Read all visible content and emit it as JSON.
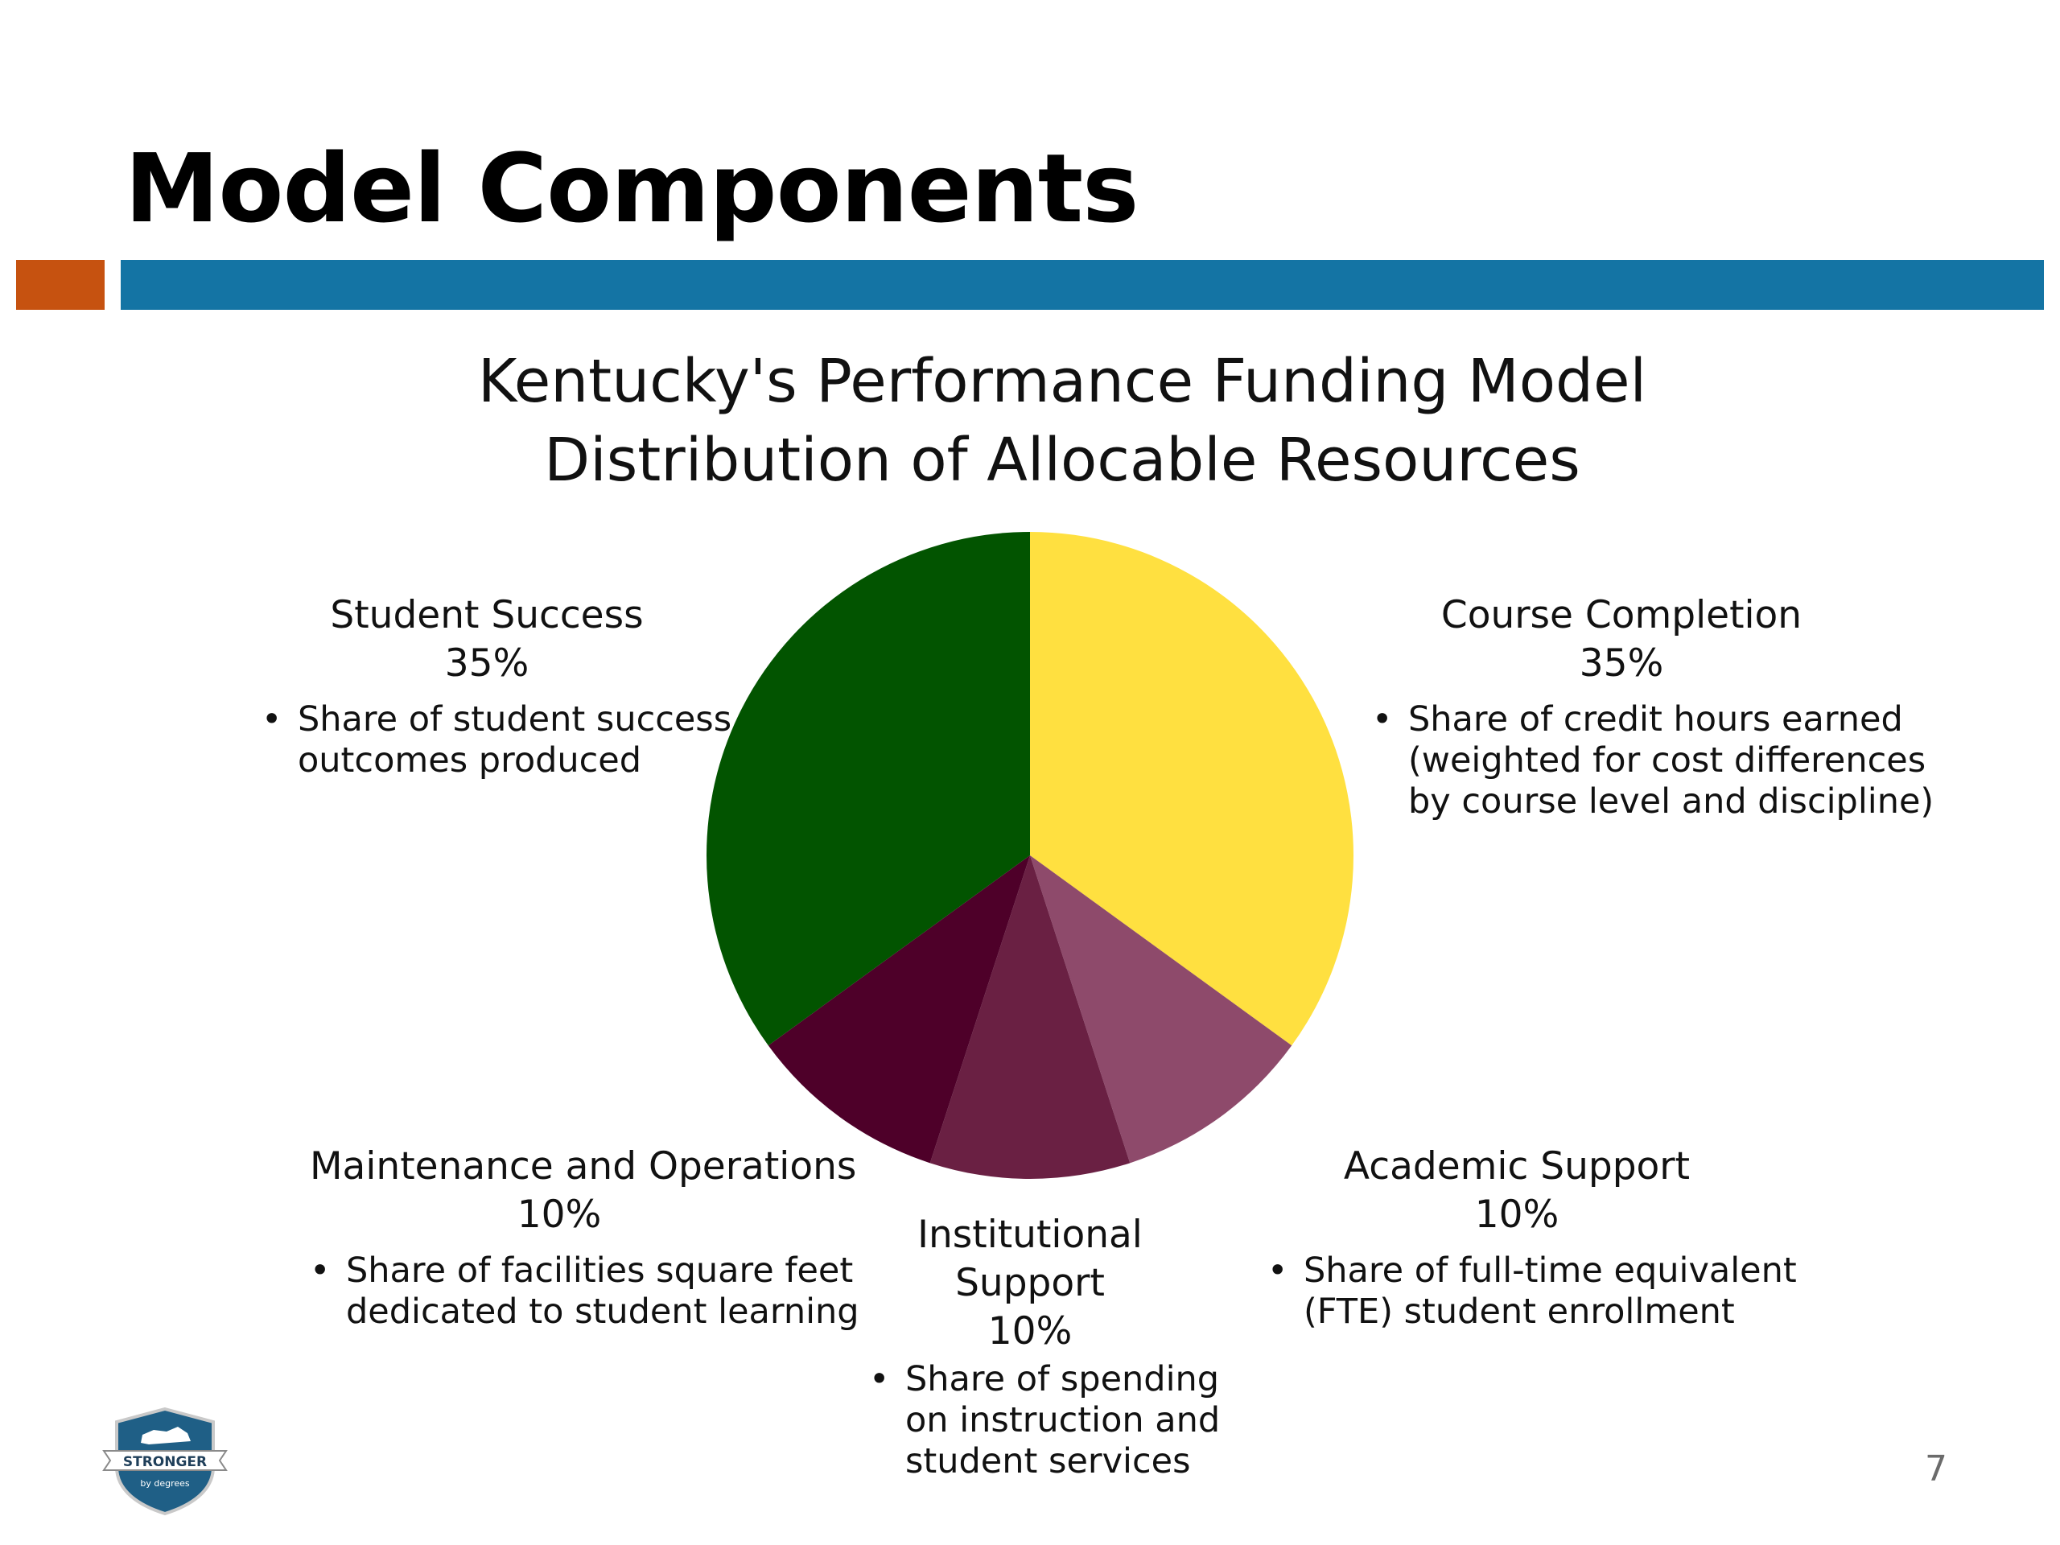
{
  "slide": {
    "title": "Model Components",
    "page_number": "7",
    "accent_colors": {
      "orange": "#C65210",
      "blue": "#1474A4"
    }
  },
  "logo": {
    "text": "STRONGER",
    "subtext": "by degrees",
    "icon": "kentucky-shield-icon",
    "colors": {
      "shield": "#1F5F86",
      "banner": "#FFFFFF"
    }
  },
  "chart_data": {
    "type": "pie",
    "title_lines": [
      "Kentucky's Performance Funding Model",
      "Distribution of Allocable Resources"
    ],
    "slices": [
      {
        "name": "Course Completion",
        "percent_label": "35%",
        "value": 35,
        "color": "#FFE040",
        "description": [
          "Share of credit hours earned",
          "(weighted for cost differences",
          "by course level and discipline)"
        ]
      },
      {
        "name": "Academic Support",
        "percent_label": "10%",
        "value": 10,
        "color": "#8E4A6B",
        "description": [
          "Share of full-time equivalent",
          "(FTE) student enrollment"
        ]
      },
      {
        "name_lines": [
          "Institutional",
          "Support"
        ],
        "percent_label": "10%",
        "value": 10,
        "color": "#6A2043",
        "description": [
          "Share of spending",
          "on instruction and",
          "student services"
        ]
      },
      {
        "name": "Maintenance and Operations",
        "percent_label": "10%",
        "value": 10,
        "color": "#4E0029",
        "description": [
          "Share of facilities square feet",
          "dedicated to student learning"
        ]
      },
      {
        "name": "Student Success",
        "percent_label": "35%",
        "value": 35,
        "color": "#025400",
        "description": [
          "Share of student success",
          "outcomes produced"
        ]
      }
    ]
  }
}
